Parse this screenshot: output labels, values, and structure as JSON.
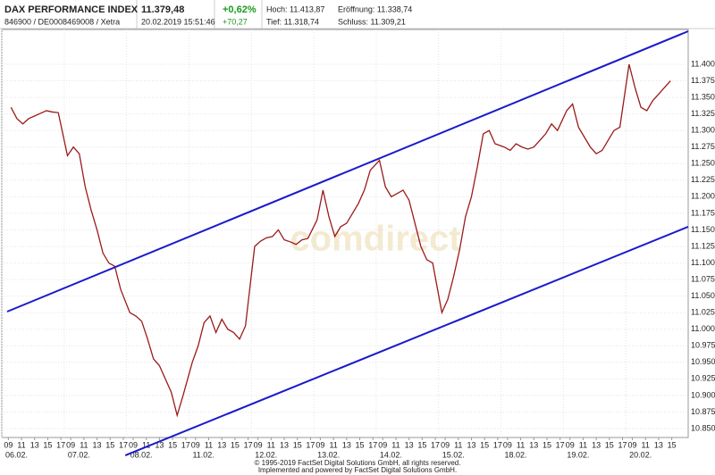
{
  "header": {
    "title": "DAX PERFORMANCE INDEX",
    "ids": "846900 / DE0008469008 / Xetra",
    "price": "11.379,48",
    "timestamp": "20.02.2019 15:51:46",
    "change_pct": "+0,62%",
    "change_abs": "+70,27",
    "high": "Hoch: 11.413,87",
    "open": "Eröffnung: 11.338,74",
    "low": "Tief: 11.318,74",
    "close": "Schluss: 11.309,21"
  },
  "watermark": "comdirect",
  "footer": {
    "line1": "© 1995-2019 FactSet Digital Solutions GmbH, all rights reserved.",
    "line2": "Implemented and powered by FactSet Digital Solutions GmbH."
  },
  "chart_data": {
    "type": "line",
    "grid": true,
    "xlim": [
      0,
      104.5
    ],
    "ylim": [
      10.8365,
      11.4526
    ],
    "yticks": [
      {
        "value": 10.85,
        "label": "10.850"
      },
      {
        "value": 10.875,
        "label": "10.875"
      },
      {
        "value": 10.9,
        "label": "10.900"
      },
      {
        "value": 10.925,
        "label": "10.925"
      },
      {
        "value": 10.95,
        "label": "10.950"
      },
      {
        "value": 10.975,
        "label": "10.975"
      },
      {
        "value": 11.0,
        "label": "11.000"
      },
      {
        "value": 11.025,
        "label": "11.025"
      },
      {
        "value": 11.05,
        "label": "11.050"
      },
      {
        "value": 11.075,
        "label": "11.075"
      },
      {
        "value": 11.1,
        "label": "11.100"
      },
      {
        "value": 11.125,
        "label": "11.125"
      },
      {
        "value": 11.15,
        "label": "11.150"
      },
      {
        "value": 11.175,
        "label": "11.175"
      },
      {
        "value": 11.2,
        "label": "11.200"
      },
      {
        "value": 11.225,
        "label": "11.225"
      },
      {
        "value": 11.25,
        "label": "11.250"
      },
      {
        "value": 11.275,
        "label": "11.275"
      },
      {
        "value": 11.3,
        "label": "11.300"
      },
      {
        "value": 11.325,
        "label": "11.325"
      },
      {
        "value": 11.35,
        "label": "11.350"
      },
      {
        "value": 11.375,
        "label": "11.375"
      },
      {
        "value": 11.4,
        "label": "11.400"
      }
    ],
    "xticks": [
      {
        "value": 1,
        "label": "09"
      },
      {
        "value": 3,
        "label": "11"
      },
      {
        "value": 5,
        "label": "13"
      },
      {
        "value": 7,
        "label": "15"
      },
      {
        "value": 9,
        "label": "17"
      },
      {
        "value": 10.5,
        "label": "09"
      },
      {
        "value": 12.5,
        "label": "11"
      },
      {
        "value": 14.5,
        "label": "13"
      },
      {
        "value": 16.5,
        "label": "15"
      },
      {
        "value": 18.5,
        "label": "17"
      },
      {
        "value": 20,
        "label": "09"
      },
      {
        "value": 22,
        "label": "11"
      },
      {
        "value": 24,
        "label": "13"
      },
      {
        "value": 26,
        "label": "15"
      },
      {
        "value": 28,
        "label": "17"
      },
      {
        "value": 29.5,
        "label": "09"
      },
      {
        "value": 31.5,
        "label": "11"
      },
      {
        "value": 33.5,
        "label": "13"
      },
      {
        "value": 35.5,
        "label": "15"
      },
      {
        "value": 37.5,
        "label": "17"
      },
      {
        "value": 39,
        "label": "09"
      },
      {
        "value": 41,
        "label": "11"
      },
      {
        "value": 43,
        "label": "13"
      },
      {
        "value": 45,
        "label": "15"
      },
      {
        "value": 47,
        "label": "17"
      },
      {
        "value": 48.5,
        "label": "09"
      },
      {
        "value": 50.5,
        "label": "11"
      },
      {
        "value": 52.5,
        "label": "13"
      },
      {
        "value": 54.5,
        "label": "15"
      },
      {
        "value": 56.5,
        "label": "17"
      },
      {
        "value": 58,
        "label": "09"
      },
      {
        "value": 60,
        "label": "11"
      },
      {
        "value": 62,
        "label": "13"
      },
      {
        "value": 64,
        "label": "15"
      },
      {
        "value": 66,
        "label": "17"
      },
      {
        "value": 67.5,
        "label": "09"
      },
      {
        "value": 69.5,
        "label": "11"
      },
      {
        "value": 71.5,
        "label": "13"
      },
      {
        "value": 73.5,
        "label": "15"
      },
      {
        "value": 75.5,
        "label": "17"
      },
      {
        "value": 77,
        "label": "09"
      },
      {
        "value": 79,
        "label": "11"
      },
      {
        "value": 81,
        "label": "13"
      },
      {
        "value": 83,
        "label": "15"
      },
      {
        "value": 85,
        "label": "17"
      },
      {
        "value": 86.5,
        "label": "09"
      },
      {
        "value": 88.5,
        "label": "11"
      },
      {
        "value": 90.5,
        "label": "13"
      },
      {
        "value": 92.5,
        "label": "15"
      },
      {
        "value": 94.5,
        "label": "17"
      },
      {
        "value": 96,
        "label": "09"
      },
      {
        "value": 98,
        "label": "11"
      },
      {
        "value": 100,
        "label": "13"
      },
      {
        "value": 102,
        "label": "15"
      }
    ],
    "date_labels": [
      {
        "value": 0,
        "label": "06.02."
      },
      {
        "value": 9.5,
        "label": "07.02."
      },
      {
        "value": 19,
        "label": "08.02."
      },
      {
        "value": 28.5,
        "label": "11.02."
      },
      {
        "value": 38,
        "label": "12.02."
      },
      {
        "value": 47.5,
        "label": "13.02."
      },
      {
        "value": 57,
        "label": "14.02."
      },
      {
        "value": 66.5,
        "label": "15.02."
      },
      {
        "value": 76,
        "label": "18.02."
      },
      {
        "value": 85.5,
        "label": "19.02."
      },
      {
        "value": 95,
        "label": "20.02."
      }
    ],
    "x": [
      1.4,
      2.3,
      3.2,
      4.1,
      5,
      5.9,
      6.8,
      7.7,
      8.6,
      10,
      10.9,
      11.8,
      12.7,
      13.6,
      14.5,
      15.4,
      16.3,
      17.2,
      18.1,
      19.5,
      20.4,
      21.3,
      22.2,
      23.1,
      24,
      24.9,
      25.8,
      26.7,
      27.6,
      29,
      29.9,
      30.8,
      31.7,
      32.6,
      33.5,
      34.4,
      35.3,
      36.2,
      37.1,
      38.5,
      39.4,
      40.3,
      41.2,
      42.1,
      43,
      43.9,
      44.8,
      45.7,
      46.6,
      48,
      48.9,
      49.8,
      50.7,
      51.6,
      52.5,
      53.4,
      54.3,
      55.2,
      56.1,
      57.5,
      58.4,
      59.3,
      60.2,
      61.1,
      62,
      62.9,
      63.8,
      64.7,
      65.6,
      67,
      67.9,
      68.8,
      69.7,
      70.6,
      71.5,
      72.4,
      73.3,
      74.2,
      75.1,
      76.5,
      77.4,
      78.3,
      79.2,
      80.1,
      81,
      81.9,
      82.8,
      83.7,
      84.6,
      86,
      86.9,
      87.8,
      88.7,
      89.6,
      90.5,
      91.4,
      92.3,
      93.2,
      94.1,
      95.5,
      96.4,
      97.3,
      98.2,
      99.1,
      100,
      100.9,
      101.8
    ],
    "series": [
      {
        "color": "#9a1a1a",
        "values": [
          11.335,
          11.318,
          11.31,
          11.318,
          11.322,
          11.326,
          11.33,
          11.328,
          11.327,
          11.262,
          11.275,
          11.265,
          11.215,
          11.18,
          11.15,
          11.115,
          11.1,
          11.095,
          11.06,
          11.025,
          11.02,
          11.012,
          10.985,
          10.955,
          10.945,
          10.925,
          10.905,
          10.87,
          10.9,
          10.95,
          10.975,
          11.01,
          11.02,
          10.995,
          11.015,
          11.0,
          10.995,
          10.985,
          11.005,
          11.125,
          11.133,
          11.138,
          11.14,
          11.15,
          11.135,
          11.132,
          11.128,
          11.135,
          11.137,
          11.165,
          11.21,
          11.17,
          11.14,
          11.155,
          11.16,
          11.175,
          11.19,
          11.21,
          11.24,
          11.255,
          11.215,
          11.2,
          11.205,
          11.21,
          11.195,
          11.16,
          11.125,
          11.105,
          11.1,
          11.025,
          11.045,
          11.08,
          11.12,
          11.17,
          11.2,
          11.245,
          11.295,
          11.3,
          11.28,
          11.275,
          11.27,
          11.28,
          11.275,
          11.272,
          11.275,
          11.285,
          11.295,
          11.31,
          11.3,
          11.33,
          11.34,
          11.305,
          11.29,
          11.275,
          11.265,
          11.27,
          11.285,
          11.3,
          11.305,
          11.4,
          11.365,
          11.335,
          11.33,
          11.345,
          11.355,
          11.365,
          11.375
        ]
      }
    ],
    "trend_lines": [
      {
        "color": "#1a1acc",
        "x": [
          0.82,
          104.5
        ],
        "y": [
          11.0266,
          11.4499
        ]
      },
      {
        "color": "#1a1acc",
        "x": [
          18.8,
          104.5
        ],
        "y": [
          10.8095,
          11.1547
        ]
      }
    ]
  }
}
